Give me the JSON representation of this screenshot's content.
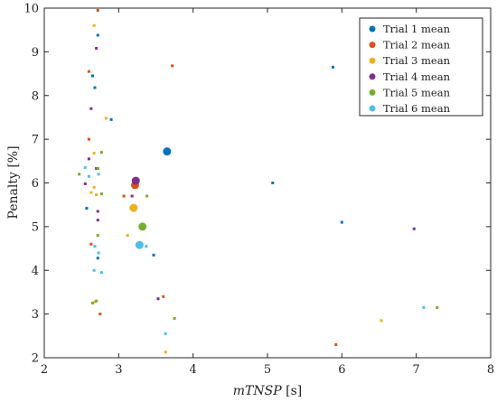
{
  "chart_data": {
    "type": "scatter",
    "xlabel_italic": "mTNSP",
    "xlabel_unit": " [s]",
    "ylabel": "Penalty [%]",
    "xlim": [
      2,
      8
    ],
    "ylim": [
      2,
      10
    ],
    "xticks": [
      "2",
      "3",
      "4",
      "5",
      "6",
      "7",
      "8"
    ],
    "yticks": [
      "2",
      "3",
      "4",
      "5",
      "6",
      "7",
      "8",
      "9",
      "10"
    ],
    "grid": false,
    "legend_position": "top-right",
    "series": [
      {
        "name": "Trial 1 mean",
        "color": "#0072BD",
        "mean": [
          3.65,
          6.72
        ],
        "points": [
          [
            2.72,
            9.38
          ],
          [
            2.65,
            8.45
          ],
          [
            2.68,
            8.18
          ],
          [
            2.9,
            7.45
          ],
          [
            5.88,
            8.65
          ],
          [
            5.07,
            6.0
          ],
          [
            6.0,
            5.1
          ],
          [
            2.57,
            5.42
          ],
          [
            3.47,
            4.35
          ],
          [
            2.72,
            4.28
          ]
        ]
      },
      {
        "name": "Trial 2 mean",
        "color": "#D95319",
        "mean": [
          3.22,
          5.95
        ],
        "points": [
          [
            2.72,
            9.95
          ],
          [
            2.6,
            8.55
          ],
          [
            3.72,
            8.68
          ],
          [
            2.6,
            7.0
          ],
          [
            3.07,
            5.7
          ],
          [
            2.63,
            4.6
          ],
          [
            3.6,
            3.4
          ],
          [
            2.75,
            3.0
          ],
          [
            5.92,
            2.3
          ],
          [
            2.72,
            6.33
          ]
        ]
      },
      {
        "name": "Trial 3 mean",
        "color": "#EDB120",
        "mean": [
          3.2,
          5.43
        ],
        "points": [
          [
            2.67,
            9.6
          ],
          [
            2.83,
            7.48
          ],
          [
            2.67,
            6.68
          ],
          [
            2.67,
            5.9
          ],
          [
            2.63,
            5.78
          ],
          [
            2.7,
            5.73
          ],
          [
            3.12,
            4.8
          ],
          [
            2.68,
            3.28
          ],
          [
            6.53,
            2.85
          ],
          [
            3.63,
            2.13
          ]
        ]
      },
      {
        "name": "Trial 4 mean",
        "color": "#7E2F8E",
        "mean": [
          3.23,
          6.05
        ],
        "points": [
          [
            2.7,
            9.08
          ],
          [
            2.63,
            7.7
          ],
          [
            2.6,
            6.55
          ],
          [
            2.55,
            5.98
          ],
          [
            3.18,
            5.7
          ],
          [
            2.72,
            5.35
          ],
          [
            2.72,
            5.15
          ],
          [
            3.53,
            3.35
          ],
          [
            6.97,
            4.95
          ],
          [
            2.7,
            6.33
          ]
        ]
      },
      {
        "name": "Trial 5 mean",
        "color": "#77AC30",
        "mean": [
          3.32,
          5.0
        ],
        "points": [
          [
            2.77,
            6.7
          ],
          [
            2.72,
            6.33
          ],
          [
            2.47,
            6.2
          ],
          [
            2.77,
            5.75
          ],
          [
            3.38,
            5.7
          ],
          [
            2.72,
            4.8
          ],
          [
            2.7,
            3.3
          ],
          [
            3.75,
            2.9
          ],
          [
            7.28,
            3.15
          ],
          [
            2.65,
            3.25
          ]
        ]
      },
      {
        "name": "Trial 6 mean",
        "color": "#4DBEEE",
        "mean": [
          3.28,
          4.58
        ],
        "points": [
          [
            2.55,
            6.35
          ],
          [
            2.6,
            6.15
          ],
          [
            2.73,
            6.2
          ],
          [
            2.68,
            4.55
          ],
          [
            2.73,
            4.4
          ],
          [
            2.67,
            4.0
          ],
          [
            2.77,
            3.95
          ],
          [
            3.37,
            4.55
          ],
          [
            3.63,
            2.55
          ],
          [
            7.1,
            3.15
          ]
        ]
      }
    ]
  }
}
